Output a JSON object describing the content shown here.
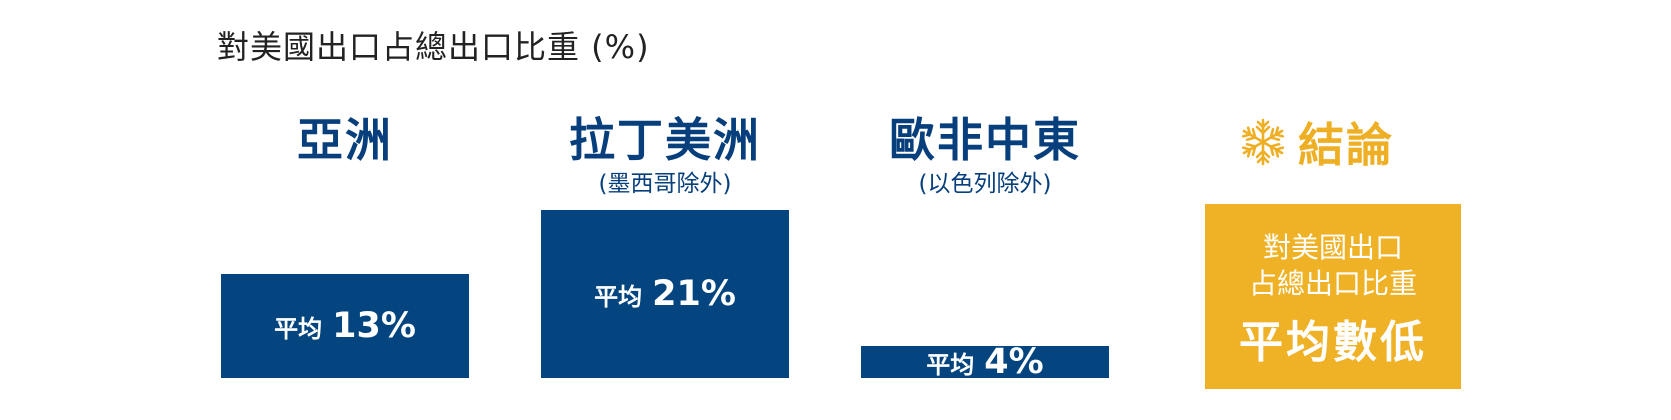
{
  "chart_data": {
    "type": "bar",
    "title": "對美國出口占總出口比重 (%)",
    "categories": [
      {
        "name": "亞洲",
        "sub": ""
      },
      {
        "name": "拉丁美洲",
        "sub": "(墨西哥除外)"
      },
      {
        "name": "歐非中東",
        "sub": "(以色列除外)"
      }
    ],
    "value_prefix": "平均",
    "values": [
      13,
      21,
      4
    ],
    "value_labels": [
      "13%",
      "21%",
      "4%"
    ]
  },
  "conclusion": {
    "icon": "snowflake-icon",
    "title": "結論",
    "line1": "對美國出口",
    "line2": "占總出口比重",
    "line3": "平均數低"
  },
  "colors": {
    "bar": "#04457f",
    "region_text": "#073f7d",
    "accent": "#efb125"
  }
}
